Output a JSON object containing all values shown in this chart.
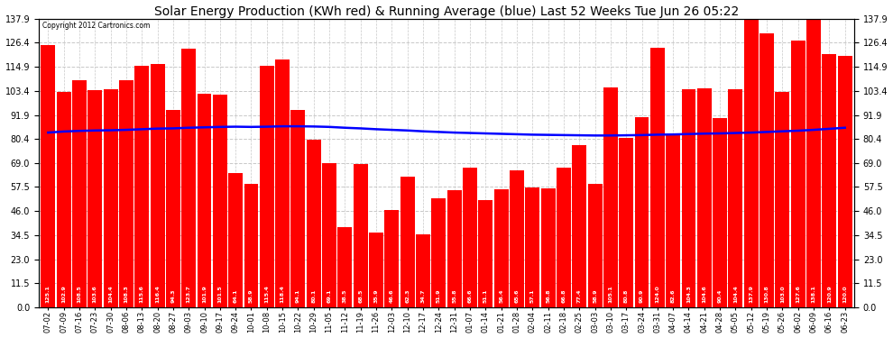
{
  "title": "Solar Energy Production (KWh red) & Running Average (blue) Last 52 Weeks Tue Jun 26 05:22",
  "copyright": "Copyright 2012 Cartronics.com",
  "bar_color": "#ff0000",
  "avg_line_color": "#0000ff",
  "background_color": "#ffffff",
  "plot_bg_color": "#ffffff",
  "grid_color": "#c8c8c8",
  "ylim": [
    0,
    137.9
  ],
  "yticks": [
    0.0,
    11.5,
    23.0,
    34.5,
    46.0,
    57.5,
    69.0,
    80.4,
    91.9,
    103.4,
    114.9,
    126.4,
    137.9
  ],
  "categories": [
    "07-02",
    "07-09",
    "07-16",
    "07-23",
    "07-30",
    "08-06",
    "08-13",
    "08-20",
    "08-27",
    "09-03",
    "09-10",
    "09-17",
    "09-24",
    "10-01",
    "10-08",
    "10-15",
    "10-22",
    "10-29",
    "11-05",
    "11-12",
    "11-19",
    "11-26",
    "12-03",
    "12-10",
    "12-17",
    "12-24",
    "12-31",
    "01-07",
    "01-14",
    "01-21",
    "01-28",
    "02-04",
    "02-11",
    "02-18",
    "02-25",
    "03-03",
    "03-10",
    "03-17",
    "03-24",
    "03-31",
    "04-07",
    "04-14",
    "04-21",
    "04-28",
    "05-05",
    "05-12",
    "05-19",
    "05-26",
    "06-02",
    "06-09",
    "06-16",
    "06-23"
  ],
  "values": [
    125.1,
    102.9,
    108.5,
    103.6,
    104.4,
    108.3,
    115.6,
    116.4,
    94.3,
    123.7,
    101.9,
    101.5,
    64.1,
    58.9,
    115.4,
    118.4,
    94.1,
    80.1,
    69.1,
    38.5,
    68.5,
    35.9,
    46.6,
    62.3,
    34.7,
    51.9,
    55.8,
    66.6,
    51.1,
    56.4,
    65.6,
    57.1,
    56.8,
    66.8,
    77.4,
    58.9,
    105.1,
    80.8,
    90.9,
    124.0,
    82.6,
    104.3,
    104.6,
    90.4,
    104.4,
    137.9,
    130.8,
    103.0,
    127.6,
    138.1,
    120.9,
    120.0
  ],
  "running_avg": [
    83.5,
    84.0,
    84.3,
    84.5,
    84.6,
    84.8,
    85.1,
    85.4,
    85.5,
    85.8,
    86.0,
    86.2,
    86.3,
    86.2,
    86.3,
    86.5,
    86.5,
    86.4,
    86.2,
    85.8,
    85.5,
    85.1,
    84.8,
    84.5,
    84.1,
    83.8,
    83.5,
    83.3,
    83.1,
    82.9,
    82.7,
    82.5,
    82.4,
    82.3,
    82.2,
    82.1,
    82.1,
    82.2,
    82.3,
    82.5,
    82.6,
    82.8,
    83.0,
    83.1,
    83.3,
    83.5,
    83.8,
    84.1,
    84.4,
    84.8,
    85.3,
    85.8
  ],
  "title_fontsize": 10,
  "tick_fontsize": 7,
  "xlabel_fontsize": 6,
  "value_label_fontsize": 4.5
}
